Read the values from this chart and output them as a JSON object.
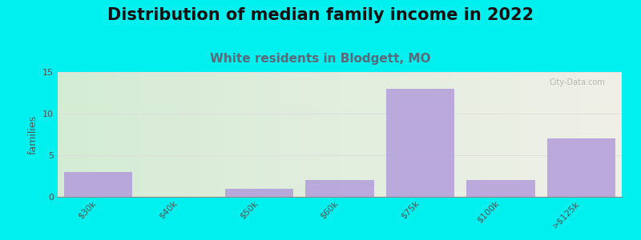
{
  "title": "Distribution of median family income in 2022",
  "subtitle": "White residents in Blodgett, MO",
  "categories": [
    "$30k",
    "$40k",
    "$50k",
    "$60k",
    "$75k",
    "$100k",
    ">$125k"
  ],
  "values": [
    3,
    0,
    1,
    2,
    13,
    2,
    7
  ],
  "bar_color": "#b39ddb",
  "bar_alpha": 0.85,
  "background_color": "#00efef",
  "gradient_left": "#d4ecd4",
  "gradient_right": "#f0f0e8",
  "ylabel": "families",
  "ylim": [
    0,
    15
  ],
  "yticks": [
    0,
    5,
    10,
    15
  ],
  "title_fontsize": 15,
  "title_color": "#111111",
  "subtitle_fontsize": 11,
  "subtitle_color": "#5a6a7a",
  "watermark": "City-Data.com",
  "watermark_color": "#aaaaaa",
  "grid_color": "#dddddd",
  "tick_label_color": "#555555",
  "ylabel_color": "#555555"
}
